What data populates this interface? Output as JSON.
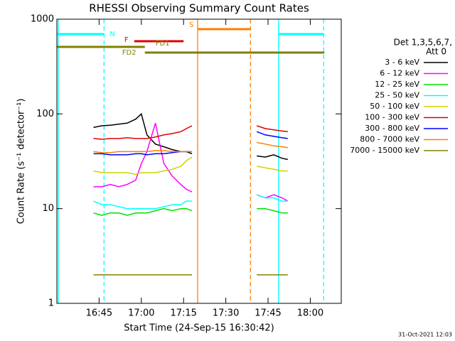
{
  "chart_data": {
    "type": "line",
    "title": "RHESSI Observing Summary Count Rates",
    "x_label": "Start Time (24-Sep-15 16:30:42)",
    "y_label": "Count Rate (s⁻¹ detector⁻¹)",
    "legend_header": [
      "Det 1,3,5,6,7,",
      "Att 0"
    ],
    "footer": "31-Oct-2021 12:03",
    "log_y": true,
    "xlim": [
      990,
      1091
    ],
    "ylim": [
      1,
      1000
    ],
    "xticks": [
      {
        "value": 1005,
        "label": "16:45"
      },
      {
        "value": 1020,
        "label": "17:00"
      },
      {
        "value": 1035,
        "label": "17:15"
      },
      {
        "value": 1050,
        "label": "17:30"
      },
      {
        "value": 1065,
        "label": "17:45"
      },
      {
        "value": 1080,
        "label": "18:00"
      }
    ],
    "yticks": [
      1,
      10,
      100,
      1000
    ],
    "x": [
      1003,
      1006,
      1009,
      1012,
      1015,
      1018,
      1020,
      1022,
      1025,
      1028,
      1031,
      1034,
      1036,
      1038,
      1040,
      1061,
      1064,
      1067,
      1070,
      1072
    ],
    "series": [
      {
        "name": "3 - 6 keV",
        "color": "#000000",
        "values": [
          72,
          75,
          76,
          78,
          80,
          88,
          100,
          60,
          48,
          45,
          42,
          40,
          40,
          38,
          null,
          36,
          35,
          37,
          34,
          33
        ]
      },
      {
        "name": "6 - 12 keV",
        "color": "#ff00ff",
        "values": [
          17,
          17,
          18,
          17,
          18,
          20,
          30,
          40,
          80,
          30,
          22,
          18,
          16,
          15,
          null,
          14,
          13,
          14,
          13,
          12
        ]
      },
      {
        "name": "12 - 25 keV",
        "color": "#00e000",
        "values": [
          9,
          8.5,
          9,
          9,
          8.5,
          9,
          9,
          9,
          9.5,
          10,
          9.5,
          10,
          10,
          9.5,
          null,
          10,
          10,
          9.5,
          9,
          9
        ]
      },
      {
        "name": "25 - 50 keV",
        "color": "#00ffff",
        "values": [
          12,
          11,
          11,
          10.5,
          10,
          10,
          10,
          10,
          10,
          10.5,
          11,
          11,
          12,
          12,
          null,
          14,
          13,
          13,
          12,
          12
        ]
      },
      {
        "name": "50 - 100 keV",
        "color": "#d0d000",
        "values": [
          25,
          24,
          24,
          24,
          24,
          23,
          24,
          24,
          24,
          25,
          26,
          28,
          32,
          35,
          null,
          28,
          27,
          26,
          25,
          25
        ]
      },
      {
        "name": "100 - 300 keV",
        "color": "#e00000",
        "values": [
          55,
          54,
          55,
          55,
          56,
          55,
          55,
          55,
          57,
          60,
          62,
          65,
          70,
          75,
          null,
          75,
          70,
          68,
          66,
          65
        ]
      },
      {
        "name": "300 - 800 keV",
        "color": "#0000ff",
        "values": [
          38,
          38,
          37,
          37,
          37,
          38,
          38,
          37,
          38,
          38,
          39,
          40,
          40,
          40,
          null,
          65,
          60,
          58,
          56,
          55
        ]
      },
      {
        "name": "800 - 7000 keV",
        "color": "#ff7f00",
        "values": [
          40,
          39,
          39,
          40,
          40,
          40,
          40,
          40,
          41,
          41,
          40,
          40,
          40,
          40,
          null,
          50,
          48,
          46,
          45,
          44
        ]
      },
      {
        "name": "7000 - 15000 keV",
        "color": "#808000",
        "values": [
          2,
          2,
          2,
          2,
          2,
          2,
          2,
          2,
          2,
          2,
          2,
          2,
          2,
          2,
          null,
          2,
          2,
          2,
          2,
          2
        ]
      }
    ],
    "vertical_lines": [
      {
        "x": 990.5,
        "color": "#00ffff",
        "dashed": false
      },
      {
        "x": 1006.75,
        "color": "#00ffff",
        "dashed": true
      },
      {
        "x": 1068.75,
        "color": "#00ffff",
        "dashed": false
      },
      {
        "x": 1084.75,
        "color": "#00ffff",
        "dashed": true
      },
      {
        "x": 1040,
        "color": "#ff7f00",
        "dashed": false
      },
      {
        "x": 1058.75,
        "color": "#ff7f00",
        "dashed": true
      }
    ],
    "flags": [
      {
        "label": "S",
        "color": "#ff7f00",
        "segments": [
          [
            1040,
            1058.75
          ]
        ]
      },
      {
        "label": "N",
        "color": "#00ffff",
        "segments": [
          [
            990,
            1006.75
          ],
          [
            1068.75,
            1084.75
          ]
        ]
      },
      {
        "label": "F",
        "color": "#e00000",
        "segments": [
          [
            1017.5,
            1035
          ]
        ]
      },
      {
        "label": "FD1",
        "color": "#808000",
        "segments": [
          [
            990,
            1021.25
          ]
        ]
      },
      {
        "label": "FD2",
        "color": "#808000",
        "segments": [
          [
            1021.25,
            1085
          ]
        ]
      }
    ]
  }
}
